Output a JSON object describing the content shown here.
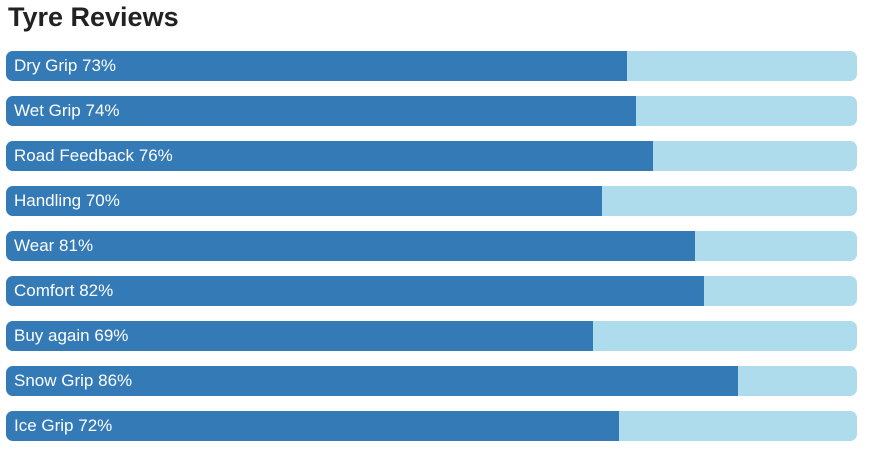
{
  "chart_data": {
    "type": "bar",
    "title": "Tyre Reviews",
    "categories": [
      "Dry Grip",
      "Wet Grip",
      "Road Feedback",
      "Handling",
      "Wear",
      "Comfort",
      "Buy again",
      "Snow Grip",
      "Ice Grip"
    ],
    "values": [
      73,
      74,
      76,
      70,
      81,
      82,
      69,
      86,
      72
    ],
    "value_labels": [
      "73%",
      "74%",
      "76%",
      "70%",
      "81%",
      "82%",
      "69%",
      "86%",
      "72%"
    ],
    "color": "#337ab7",
    "track_color": "#afdcec",
    "xlim": [
      0,
      100
    ]
  }
}
